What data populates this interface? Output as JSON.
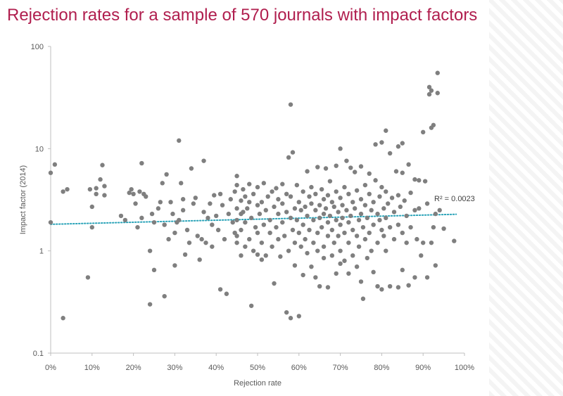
{
  "chart_data": {
    "type": "scatter",
    "title": "Rejection rates for a sample of 570 journals with impact factors",
    "xlabel": "Rejection rate",
    "ylabel": "Impact factor (2014)",
    "x_scale": "linear",
    "y_scale": "log",
    "xlim": [
      0,
      100
    ],
    "ylim": [
      0.1,
      100
    ],
    "x_ticks": [
      "0%",
      "10%",
      "20%",
      "30%",
      "40%",
      "50%",
      "60%",
      "70%",
      "80%",
      "90%",
      "100%"
    ],
    "y_ticks": [
      "0.1",
      "1",
      "10",
      "100"
    ],
    "grid": false,
    "marker_color": "#7f7f7f",
    "trend_color": "#2aa3b8",
    "trendline": {
      "type": "linear",
      "style": "dotted",
      "x": [
        0,
        98
      ],
      "y": [
        1.82,
        2.28
      ],
      "label": "R² = 0.0023"
    },
    "points": [
      [
        0,
        5.8
      ],
      [
        0,
        1.9
      ],
      [
        1,
        7.0
      ],
      [
        3,
        0.22
      ],
      [
        3,
        3.8
      ],
      [
        4,
        4.0
      ],
      [
        9,
        0.55
      ],
      [
        9.5,
        4.0
      ],
      [
        10,
        2.7
      ],
      [
        10,
        1.7
      ],
      [
        11,
        3.6
      ],
      [
        11,
        4.1
      ],
      [
        12,
        5.0
      ],
      [
        12.5,
        6.9
      ],
      [
        13,
        3.5
      ],
      [
        13,
        4.3
      ],
      [
        17,
        2.2
      ],
      [
        18,
        2.0
      ],
      [
        19,
        3.7
      ],
      [
        19.5,
        4.0
      ],
      [
        20,
        3.6
      ],
      [
        20.5,
        2.9
      ],
      [
        21,
        1.7
      ],
      [
        21.5,
        3.8
      ],
      [
        22,
        7.2
      ],
      [
        22,
        2.1
      ],
      [
        22.5,
        3.6
      ],
      [
        23,
        3.4
      ],
      [
        24,
        0.3
      ],
      [
        24,
        1.0
      ],
      [
        24.5,
        2.3
      ],
      [
        25,
        0.65
      ],
      [
        25,
        1.9
      ],
      [
        26,
        2.6
      ],
      [
        26.5,
        3.0
      ],
      [
        27,
        4.6
      ],
      [
        27.5,
        0.36
      ],
      [
        27.5,
        1.8
      ],
      [
        28,
        5.6
      ],
      [
        28.5,
        1.3
      ],
      [
        29,
        3.0
      ],
      [
        29.5,
        2.3
      ],
      [
        30,
        1.5
      ],
      [
        30,
        0.72
      ],
      [
        30.5,
        1.9
      ],
      [
        31,
        12.0
      ],
      [
        31,
        2.0
      ],
      [
        31.5,
        4.6
      ],
      [
        32,
        3.2
      ],
      [
        32,
        2.5
      ],
      [
        32.5,
        0.92
      ],
      [
        33,
        1.6
      ],
      [
        33.5,
        1.2
      ],
      [
        34,
        6.4
      ],
      [
        34.5,
        2.9
      ],
      [
        35,
        3.3
      ],
      [
        35.5,
        1.4
      ],
      [
        36,
        0.82
      ],
      [
        36.5,
        1.3
      ],
      [
        37,
        7.6
      ],
      [
        37,
        2.4
      ],
      [
        37.5,
        1.2
      ],
      [
        38,
        2.1
      ],
      [
        38.5,
        2.9
      ],
      [
        39,
        1.8
      ],
      [
        39,
        1.1
      ],
      [
        39.5,
        3.5
      ],
      [
        40,
        2.2
      ],
      [
        40.5,
        1.6
      ],
      [
        41,
        0.42
      ],
      [
        41,
        3.6
      ],
      [
        41.5,
        2.8
      ],
      [
        42,
        1.3
      ],
      [
        42.5,
        0.38
      ],
      [
        43,
        2.3
      ],
      [
        43.5,
        3.2
      ],
      [
        44,
        1.9
      ],
      [
        44.5,
        1.5
      ],
      [
        44.5,
        3.8
      ],
      [
        45,
        5.4
      ],
      [
        45,
        4.4
      ],
      [
        45,
        2.6
      ],
      [
        45,
        2.0
      ],
      [
        45,
        1.4
      ],
      [
        45,
        1.2
      ],
      [
        46,
        3.1
      ],
      [
        46,
        2.3
      ],
      [
        46,
        1.6
      ],
      [
        46,
        0.9
      ],
      [
        46.5,
        4.0
      ],
      [
        46.5,
        2.4
      ],
      [
        47,
        3.4
      ],
      [
        47,
        1.9
      ],
      [
        47,
        1.1
      ],
      [
        47.5,
        2.6
      ],
      [
        48,
        4.5
      ],
      [
        48,
        3.0
      ],
      [
        48,
        1.3
      ],
      [
        48.5,
        0.29
      ],
      [
        48.5,
        2.1
      ],
      [
        49,
        1.0
      ],
      [
        49,
        3.6
      ],
      [
        49.5,
        1.7
      ],
      [
        50,
        4.2
      ],
      [
        50,
        2.8
      ],
      [
        50,
        1.5
      ],
      [
        50,
        0.92
      ],
      [
        50.5,
        2.3
      ],
      [
        51,
        3.0
      ],
      [
        51,
        1.2
      ],
      [
        51,
        0.82
      ],
      [
        51.5,
        4.6
      ],
      [
        51.5,
        1.8
      ],
      [
        52,
        2.5
      ],
      [
        52,
        0.9
      ],
      [
        52.5,
        3.4
      ],
      [
        53,
        1.5
      ],
      [
        53,
        2.0
      ],
      [
        53.5,
        3.8
      ],
      [
        53.5,
        1.1
      ],
      [
        54,
        2.7
      ],
      [
        54,
        0.48
      ],
      [
        54.5,
        4.1
      ],
      [
        54.5,
        1.7
      ],
      [
        55,
        2.3
      ],
      [
        55,
        3.2
      ],
      [
        55,
        1.3
      ],
      [
        55.5,
        0.88
      ],
      [
        56,
        2.9
      ],
      [
        56,
        1.9
      ],
      [
        56,
        4.5
      ],
      [
        56.5,
        1.4
      ],
      [
        57,
        3.6
      ],
      [
        57,
        2.4
      ],
      [
        57,
        0.25
      ],
      [
        57.5,
        8.2
      ],
      [
        57.5,
        1.0
      ],
      [
        58,
        27.0
      ],
      [
        58,
        2.1
      ],
      [
        58,
        3.4
      ],
      [
        58,
        0.22
      ],
      [
        58.5,
        9.2
      ],
      [
        58.5,
        1.6
      ],
      [
        59,
        2.6
      ],
      [
        59,
        1.2
      ],
      [
        59,
        0.72
      ],
      [
        59.5,
        4.4
      ],
      [
        59.5,
        2.0
      ],
      [
        60,
        3.0
      ],
      [
        60,
        1.5
      ],
      [
        60,
        0.23
      ],
      [
        60.5,
        2.5
      ],
      [
        60.5,
        1.1
      ],
      [
        61,
        3.8
      ],
      [
        61,
        1.8
      ],
      [
        61,
        0.58
      ],
      [
        61.5,
        2.7
      ],
      [
        61.5,
        1.3
      ],
      [
        62,
        6.0
      ],
      [
        62,
        2.2
      ],
      [
        62,
        0.95
      ],
      [
        62.5,
        3.4
      ],
      [
        62.5,
        1.6
      ],
      [
        63,
        2.9
      ],
      [
        63,
        0.7
      ],
      [
        63,
        4.2
      ],
      [
        63.5,
        2.0
      ],
      [
        63.5,
        1.2
      ],
      [
        64,
        3.6
      ],
      [
        64,
        2.5
      ],
      [
        64,
        0.55
      ],
      [
        64.5,
        6.6
      ],
      [
        64.5,
        1.5
      ],
      [
        64.5,
        1.0
      ],
      [
        65,
        2.8
      ],
      [
        65,
        2.1
      ],
      [
        65,
        0.45
      ],
      [
        65.5,
        4.0
      ],
      [
        65.5,
        1.7
      ],
      [
        66,
        3.2
      ],
      [
        66,
        2.3
      ],
      [
        66,
        1.1
      ],
      [
        66,
        0.85
      ],
      [
        66.5,
        6.4
      ],
      [
        66.5,
        2.6
      ],
      [
        67,
        3.5
      ],
      [
        67,
        1.9
      ],
      [
        67,
        1.4
      ],
      [
        67,
        0.44
      ],
      [
        67.5,
        4.8
      ],
      [
        67.5,
        2.2
      ],
      [
        68,
        3.0
      ],
      [
        68,
        1.6
      ],
      [
        68,
        0.9
      ],
      [
        68.5,
        2.7
      ],
      [
        68.5,
        1.2
      ],
      [
        69,
        6.8
      ],
      [
        69,
        3.8
      ],
      [
        69,
        2.0
      ],
      [
        69,
        0.6
      ],
      [
        69.5,
        2.4
      ],
      [
        69.5,
        1.4
      ],
      [
        70,
        10.0
      ],
      [
        70,
        3.3
      ],
      [
        70,
        1.8
      ],
      [
        70,
        1.0
      ],
      [
        70,
        0.75
      ],
      [
        70.5,
        2.8
      ],
      [
        70.5,
        2.1
      ],
      [
        71,
        4.2
      ],
      [
        71,
        1.5
      ],
      [
        71,
        0.8
      ],
      [
        71.5,
        7.6
      ],
      [
        71.5,
        2.5
      ],
      [
        72,
        3.6
      ],
      [
        72,
        1.9
      ],
      [
        72,
        1.2
      ],
      [
        72,
        0.6
      ],
      [
        72.5,
        6.5
      ],
      [
        72.5,
        2.2
      ],
      [
        73,
        3.0
      ],
      [
        73,
        1.6
      ],
      [
        73,
        0.9
      ],
      [
        73.5,
        5.9
      ],
      [
        73.5,
        2.6
      ],
      [
        74,
        3.9
      ],
      [
        74,
        1.4
      ],
      [
        74,
        0.7
      ],
      [
        74.5,
        2.0
      ],
      [
        74.5,
        1.1
      ],
      [
        75,
        6.7
      ],
      [
        75,
        3.2
      ],
      [
        75,
        2.3
      ],
      [
        75,
        0.5
      ],
      [
        75.5,
        0.34
      ],
      [
        75.5,
        1.7
      ],
      [
        76,
        4.4
      ],
      [
        76,
        2.8
      ],
      [
        76,
        1.3
      ],
      [
        76.5,
        2.1
      ],
      [
        76.5,
        0.85
      ],
      [
        77,
        5.7
      ],
      [
        77,
        3.6
      ],
      [
        77,
        1.5
      ],
      [
        77.5,
        2.5
      ],
      [
        77.5,
        1.0
      ],
      [
        78,
        3.0
      ],
      [
        78,
        1.8
      ],
      [
        78,
        0.62
      ],
      [
        78.5,
        11.0
      ],
      [
        78.5,
        4.9
      ],
      [
        79,
        2.3
      ],
      [
        79,
        1.2
      ],
      [
        79,
        0.45
      ],
      [
        79.5,
        3.4
      ],
      [
        79.5,
        2.0
      ],
      [
        80,
        11.5
      ],
      [
        80,
        4.2
      ],
      [
        80,
        1.6
      ],
      [
        80,
        0.42
      ],
      [
        80.5,
        2.6
      ],
      [
        80.5,
        1.4
      ],
      [
        81,
        15.0
      ],
      [
        81,
        3.8
      ],
      [
        81,
        2.1
      ],
      [
        81,
        1.0
      ],
      [
        81.5,
        2.9
      ],
      [
        82,
        9.0
      ],
      [
        82,
        1.7
      ],
      [
        82,
        0.45
      ],
      [
        82.5,
        3.3
      ],
      [
        83,
        2.4
      ],
      [
        83,
        1.3
      ],
      [
        83.5,
        6.0
      ],
      [
        84,
        10.5
      ],
      [
        84,
        3.5
      ],
      [
        84,
        1.8
      ],
      [
        84,
        0.44
      ],
      [
        84.5,
        2.7
      ],
      [
        85,
        11.3
      ],
      [
        85,
        5.8
      ],
      [
        85,
        1.5
      ],
      [
        85,
        0.65
      ],
      [
        85.5,
        3.1
      ],
      [
        86,
        2.2
      ],
      [
        86,
        1.2
      ],
      [
        86.5,
        7.0
      ],
      [
        86.5,
        0.46
      ],
      [
        87,
        3.7
      ],
      [
        87,
        1.7
      ],
      [
        88,
        5.0
      ],
      [
        88,
        2.5
      ],
      [
        88,
        0.55
      ],
      [
        88.5,
        1.3
      ],
      [
        89,
        4.9
      ],
      [
        89,
        2.6
      ],
      [
        89.5,
        0.9
      ],
      [
        90,
        14.5
      ],
      [
        90,
        1.2
      ],
      [
        90.5,
        4.8
      ],
      [
        91,
        2.9
      ],
      [
        91,
        0.55
      ],
      [
        91.5,
        40.0
      ],
      [
        91.5,
        34.0
      ],
      [
        92,
        37.0
      ],
      [
        92,
        16.0
      ],
      [
        92,
        1.2
      ],
      [
        92.5,
        17.0
      ],
      [
        92.5,
        1.7
      ],
      [
        93,
        0.72
      ],
      [
        93,
        2.3
      ],
      [
        93.5,
        55.0
      ],
      [
        93.5,
        35.0
      ],
      [
        94,
        2.5
      ],
      [
        95,
        1.65
      ],
      [
        97.5,
        1.25
      ]
    ]
  }
}
